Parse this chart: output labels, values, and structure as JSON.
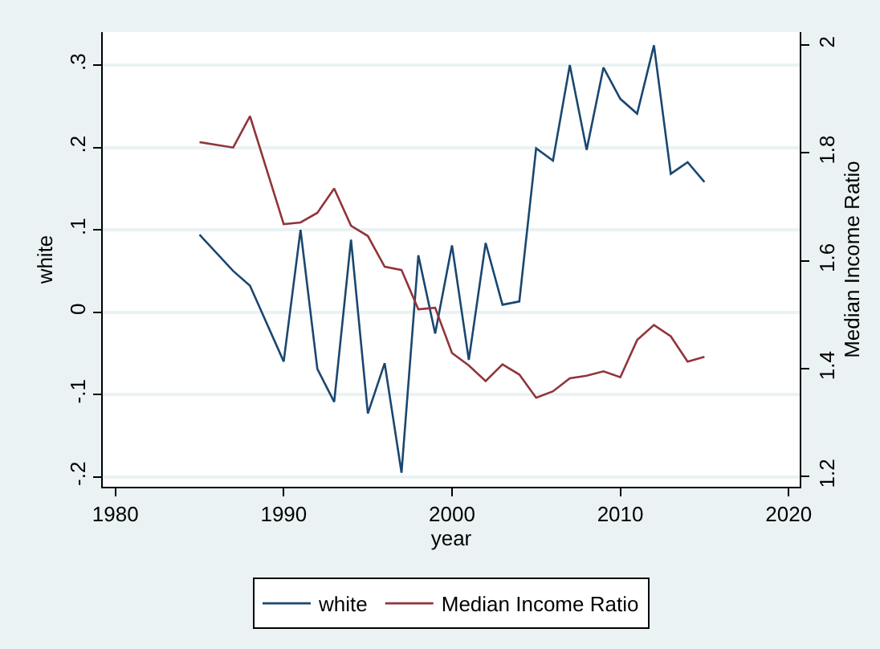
{
  "chart_data": {
    "type": "line",
    "xlabel": "year",
    "ylabel": "white",
    "y2label": "Median Income Ratio",
    "x": [
      1985,
      1987,
      1988,
      1990,
      1991,
      1992,
      1993,
      1994,
      1995,
      1996,
      1997,
      1998,
      1999,
      2000,
      2001,
      2002,
      2003,
      2004,
      2005,
      2006,
      2007,
      2008,
      2009,
      2010,
      2011,
      2012,
      2013,
      2014,
      2015
    ],
    "series": [
      {
        "name": "white",
        "color": "#1a476f",
        "values": [
          0.094,
          0.05,
          0.032,
          -0.06,
          0.1,
          -0.069,
          -0.109,
          0.088,
          -0.123,
          -0.062,
          -0.195,
          0.069,
          -0.026,
          0.081,
          -0.058,
          0.084,
          0.009,
          0.013,
          0.199,
          0.184,
          0.3,
          0.197,
          0.297,
          0.259,
          0.241,
          0.324,
          0.168,
          0.182,
          0.158
        ]
      },
      {
        "name": "Median Income Ratio",
        "color": "#90353b",
        "axis": "y2",
        "values": [
          1.82,
          1.81,
          1.868,
          1.668,
          1.671,
          1.689,
          1.734,
          1.665,
          1.646,
          1.589,
          1.583,
          1.51,
          1.513,
          1.429,
          1.406,
          1.377,
          1.408,
          1.389,
          1.346,
          1.358,
          1.382,
          1.387,
          1.395,
          1.384,
          1.453,
          1.481,
          1.46,
          1.413,
          1.422
        ]
      }
    ],
    "xlim": [
      1979.25,
      2020.66
    ],
    "xticks": [
      1980,
      1990,
      2000,
      2010,
      2020
    ],
    "ylim": [
      -0.212,
      0.34
    ],
    "yticks": [
      {
        "value": -0.2,
        "label": "-.2"
      },
      {
        "value": -0.1,
        "label": "-.1"
      },
      0,
      {
        "value": 0.1,
        "label": ".1"
      },
      {
        "value": 0.2,
        "label": ".2"
      },
      {
        "value": 0.3,
        "label": ".3"
      }
    ],
    "y2lim": [
      1.181,
      2.024
    ],
    "y2ticks": [
      1.2,
      1.4,
      1.6,
      1.8,
      2
    ],
    "grid": "y",
    "legend": "bottom",
    "marker": "none",
    "line_style": "solid"
  }
}
